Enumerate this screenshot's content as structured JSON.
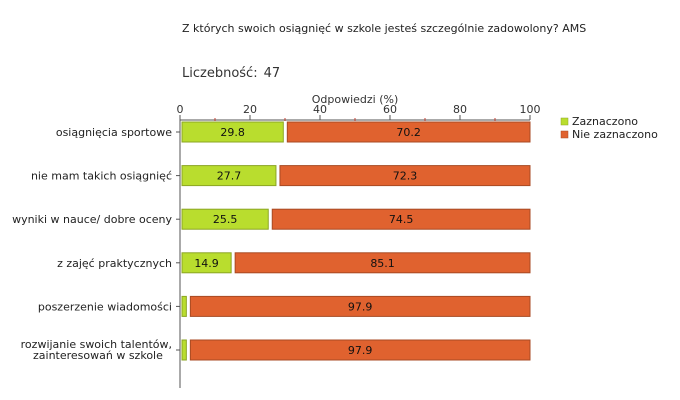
{
  "header": {
    "title": "Z których swoich osiągnięć w szkole jesteś szczególnie zadowolony? AMS",
    "count_label": "Liczebność:",
    "count_value": "47"
  },
  "chart_data": {
    "type": "bar",
    "orientation": "horizontal",
    "stacked": true,
    "xlabel": "Odpowiedzi (%)",
    "xlim": [
      0,
      100
    ],
    "x_ticks": [
      0,
      20,
      40,
      60,
      80,
      100
    ],
    "axis_position": "top",
    "legend_position": "right",
    "categories": [
      [
        "osiągnięcia sportowe"
      ],
      [
        "nie mam takich osiągnięć"
      ],
      [
        "wyniki w nauce/ dobre oceny"
      ],
      [
        "z zajęć praktycznych"
      ],
      [
        "poszerzenie wiadomości"
      ],
      [
        "rozwijanie swoich talentów,",
        "zainteresowań w szkole"
      ]
    ],
    "series": [
      {
        "name": "Zaznaczono",
        "color": "#b9dd2e",
        "values": [
          29.8,
          27.7,
          25.5,
          14.9,
          2.1,
          2.1
        ],
        "labels": [
          "29.8",
          "27.7",
          "25.5",
          "14.9",
          "",
          ""
        ]
      },
      {
        "name": "Nie zaznaczono",
        "color": "#e0622f",
        "values": [
          70.2,
          72.3,
          74.5,
          85.1,
          97.9,
          97.9
        ],
        "labels": [
          "70.2",
          "72.3",
          "74.5",
          "85.1",
          "97.9",
          "97.9"
        ]
      }
    ]
  }
}
